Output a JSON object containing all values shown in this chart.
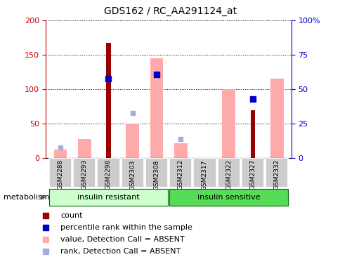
{
  "title": "GDS162 / RC_AA291124_at",
  "samples": [
    "GSM2288",
    "GSM2293",
    "GSM2298",
    "GSM2303",
    "GSM2308",
    "GSM2312",
    "GSM2317",
    "GSM2322",
    "GSM2327",
    "GSM2332"
  ],
  "count": [
    0,
    0,
    168,
    0,
    0,
    0,
    0,
    0,
    70,
    0
  ],
  "percentile_rank_lscale": [
    null,
    null,
    115,
    null,
    122,
    null,
    null,
    null,
    86,
    null
  ],
  "absent_value": [
    12,
    28,
    0,
    50,
    145,
    22,
    0,
    100,
    0,
    115
  ],
  "absent_rank_lscale": [
    15,
    null,
    null,
    65,
    122,
    28,
    null,
    null,
    null,
    null
  ],
  "ylim_left": [
    0,
    200
  ],
  "ylim_right": [
    0,
    100
  ],
  "left_ticks": [
    0,
    50,
    100,
    150,
    200
  ],
  "right_ticks": [
    0,
    25,
    50,
    75,
    100
  ],
  "right_tick_labels": [
    "0",
    "25",
    "50",
    "75",
    "100%"
  ],
  "group1_label": "insulin resistant",
  "group1_color": "#ccffcc",
  "group1_indices": [
    0,
    4
  ],
  "group2_label": "insulin sensitive",
  "group2_color": "#55dd55",
  "group2_indices": [
    5,
    9
  ],
  "color_count": "#990000",
  "color_prank": "#0000cc",
  "color_absent_value": "#ffaaaa",
  "color_absent_rank": "#aaaadd",
  "color_axis_left": "#cc0000",
  "color_axis_right": "#0000cc",
  "color_sample_bg": "#cccccc",
  "legend": [
    {
      "label": "count",
      "color": "#990000"
    },
    {
      "label": "percentile rank within the sample",
      "color": "#0000cc"
    },
    {
      "label": "value, Detection Call = ABSENT",
      "color": "#ffaaaa"
    },
    {
      "label": "rank, Detection Call = ABSENT",
      "color": "#aaaadd"
    }
  ]
}
